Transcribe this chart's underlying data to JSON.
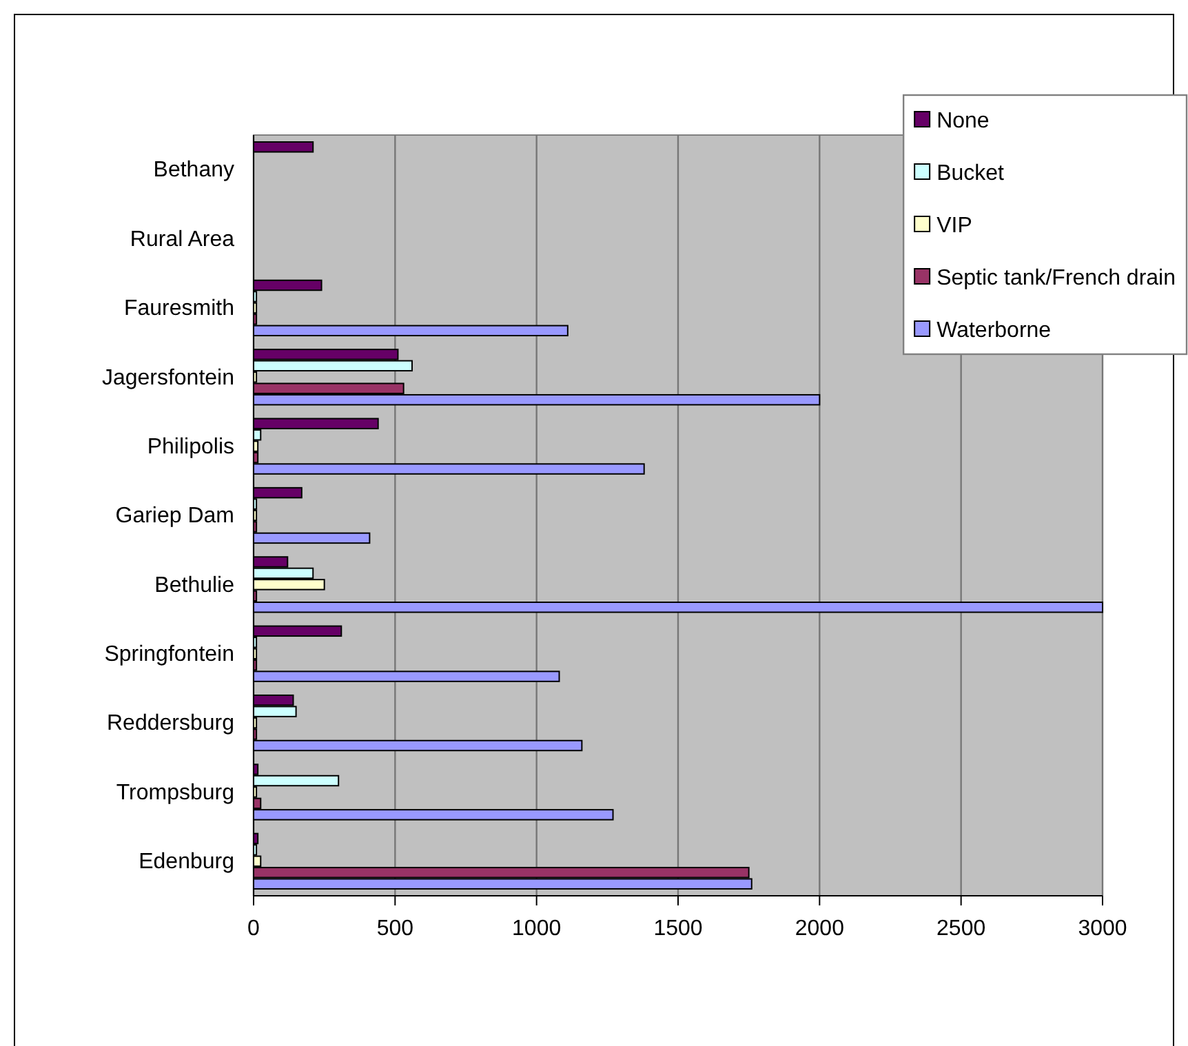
{
  "chart_data": {
    "type": "bar",
    "orientation": "horizontal",
    "categories": [
      "Bethany",
      "Rural Area",
      "Fauresmith",
      "Jagersfontein",
      "Philipolis",
      "Gariep Dam",
      "Bethulie",
      "Springfontein",
      "Reddersburg",
      "Trompsburg",
      "Edenburg"
    ],
    "series": [
      {
        "name": "None",
        "color": "#660066",
        "values": [
          210,
          null,
          240,
          510,
          440,
          170,
          120,
          310,
          140,
          15,
          15
        ]
      },
      {
        "name": "Bucket",
        "color": "#ccffff",
        "values": [
          null,
          null,
          10,
          560,
          25,
          10,
          210,
          10,
          150,
          300,
          10
        ]
      },
      {
        "name": "VIP",
        "color": "#ffffcc",
        "values": [
          null,
          null,
          10,
          10,
          15,
          10,
          250,
          10,
          10,
          10,
          25
        ]
      },
      {
        "name": "Septic tank/French drain",
        "color": "#993366",
        "values": [
          null,
          null,
          10,
          530,
          15,
          10,
          10,
          10,
          10,
          25,
          1750
        ]
      },
      {
        "name": "Waterborne",
        "color": "#9999ff",
        "values": [
          null,
          null,
          1110,
          2000,
          1380,
          410,
          3000,
          1080,
          1160,
          1270,
          1760
        ]
      }
    ],
    "xlim": [
      0,
      3000
    ],
    "xticks": [
      0,
      500,
      1000,
      1500,
      2000,
      2500,
      3000
    ],
    "grid": "x",
    "legend": "top right"
  }
}
